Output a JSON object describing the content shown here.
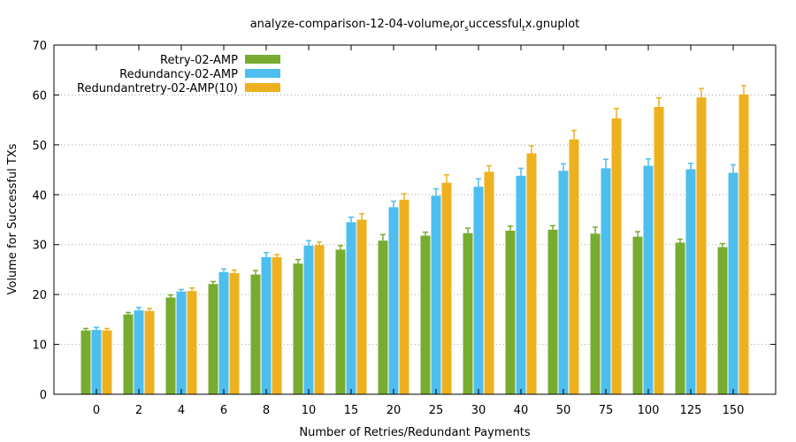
{
  "chart_data": {
    "type": "bar",
    "title": "analyze-comparison-12-04-volume",
    "title_parts": [
      "f",
      "or",
      "s",
      "uccessful",
      "t",
      "x.gnuplot"
    ],
    "xlabel": "Number of Retries/Redundant Payments",
    "ylabel": "Volume for Successful TXs",
    "ylim": [
      0,
      70
    ],
    "yticks": [
      0,
      10,
      20,
      30,
      40,
      50,
      60,
      70
    ],
    "grid": true,
    "legend_position": "top-left",
    "categories": [
      "0",
      "2",
      "4",
      "6",
      "8",
      "10",
      "15",
      "20",
      "25",
      "30",
      "40",
      "50",
      "75",
      "100",
      "125",
      "150"
    ],
    "series": [
      {
        "name": "Retry-02-AMP",
        "color": "#77ac30",
        "values": [
          12.8,
          16.0,
          19.4,
          22.1,
          24.0,
          26.2,
          29.0,
          30.8,
          31.8,
          32.3,
          32.8,
          33.0,
          32.2,
          31.6,
          30.4,
          29.5
        ],
        "errors": [
          0.4,
          0.4,
          0.5,
          0.5,
          0.8,
          0.8,
          0.8,
          1.2,
          0.7,
          1.0,
          0.9,
          0.8,
          1.3,
          1.0,
          0.7,
          0.7
        ]
      },
      {
        "name": "Redundancy-02-AMP",
        "color": "#4dbeee",
        "values": [
          12.9,
          16.8,
          20.6,
          24.5,
          27.5,
          29.8,
          34.5,
          37.5,
          39.8,
          41.6,
          43.8,
          44.8,
          45.3,
          45.8,
          45.1,
          44.4
        ],
        "errors": [
          0.5,
          0.6,
          0.4,
          0.6,
          0.9,
          1.0,
          1.0,
          1.2,
          1.4,
          1.6,
          1.5,
          1.4,
          1.8,
          1.4,
          1.2,
          1.6
        ]
      },
      {
        "name": "Redundantretry-02-AMP(10)",
        "color": "#edb120",
        "values": [
          12.8,
          16.7,
          20.7,
          24.3,
          27.5,
          29.9,
          35.0,
          39.0,
          42.4,
          44.6,
          48.3,
          51.1,
          55.3,
          57.6,
          59.5,
          60.1
        ],
        "errors": [
          0.4,
          0.5,
          0.6,
          0.6,
          0.5,
          0.6,
          1.2,
          1.2,
          1.6,
          1.2,
          1.5,
          1.8,
          2.0,
          1.8,
          1.8,
          1.8
        ]
      }
    ]
  }
}
